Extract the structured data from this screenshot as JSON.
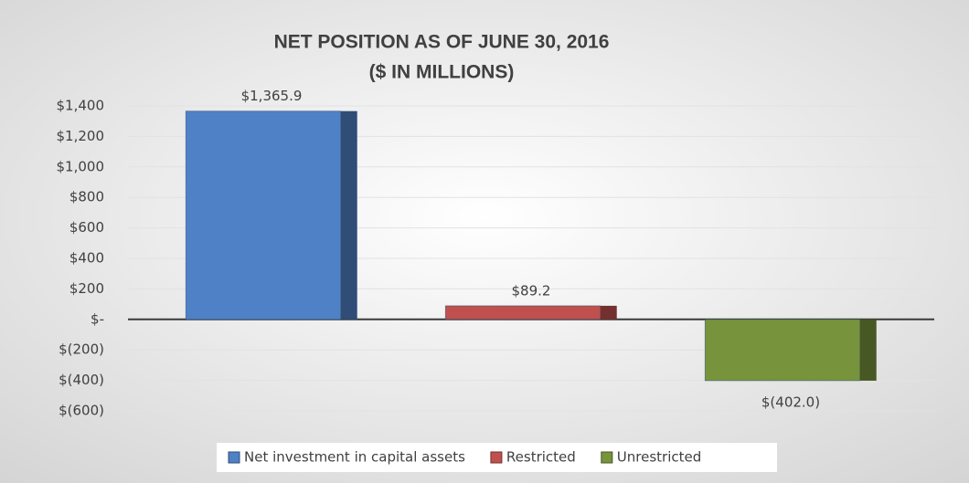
{
  "chart_data": {
    "type": "bar",
    "title": "NET POSITION AS OF JUNE 30, 2016",
    "subtitle": "($ IN MILLIONS)",
    "categories": [
      null
    ],
    "series": [
      {
        "name": "Net investment in capital assets",
        "color": "#4f81c6",
        "values": [
          1365.9
        ],
        "value_labels": [
          "$1,365.9"
        ]
      },
      {
        "name": "Restricted",
        "color": "#c0504d",
        "values": [
          89.2
        ],
        "value_labels": [
          "$89.2"
        ]
      },
      {
        "name": "Unrestricted",
        "color": "#77933c",
        "values": [
          -402.0
        ],
        "value_labels": [
          "$(402.0)"
        ]
      }
    ],
    "ylim": [
      -600,
      1400
    ],
    "yticks": [
      {
        "value": 1400,
        "label": "$1,400"
      },
      {
        "value": 1200,
        "label": "$1,200"
      },
      {
        "value": 1000,
        "label": "$1,000"
      },
      {
        "value": 800,
        "label": "$800"
      },
      {
        "value": 600,
        "label": "$600"
      },
      {
        "value": 400,
        "label": "$400"
      },
      {
        "value": 200,
        "label": "$200"
      },
      {
        "value": 0,
        "label": "$-"
      },
      {
        "value": -200,
        "label": "$(200)"
      },
      {
        "value": -400,
        "label": "$(400)"
      },
      {
        "value": -600,
        "label": "$(600)"
      }
    ],
    "grid": true,
    "legend": "bottom"
  }
}
